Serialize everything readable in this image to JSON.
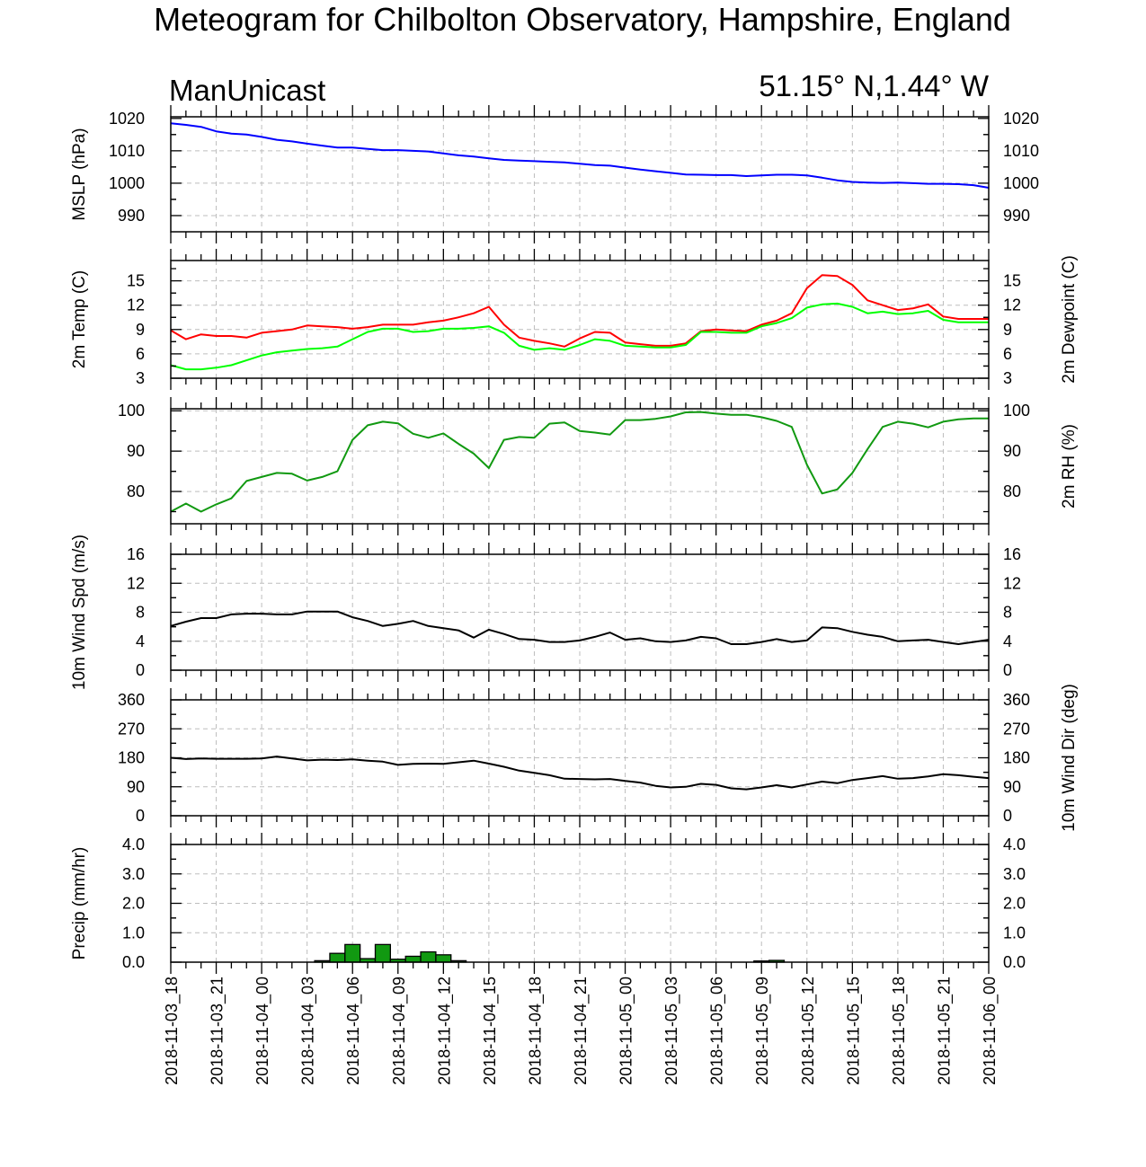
{
  "title": "Meteogram for Chilbolton Observatory, Hampshire, England",
  "model": "ManUnicast",
  "location": "51.15° N,1.44° W",
  "colors": {
    "mslp": "#0000ff",
    "temp": "#ff0000",
    "dewpoint": "#00ff00",
    "rh": "#119911",
    "wind": "#000000",
    "precip": "#119911"
  },
  "chart_data": [
    {
      "type": "line",
      "key": "mslp",
      "ylabel_left": "MSLP (hPa)",
      "ylabel_right": "",
      "ylim": [
        985,
        1020.5
      ],
      "yticks": [
        990,
        1000,
        1010,
        1020
      ],
      "tick_labels": [
        "990",
        "1000",
        "1010",
        "1020"
      ],
      "right_tick_labels": true,
      "x_hours": [
        0,
        1,
        2,
        3,
        4,
        5,
        6,
        7,
        8,
        9,
        10,
        11,
        12,
        13,
        14,
        15,
        16,
        17,
        18,
        19,
        20,
        21,
        22,
        23,
        24,
        25,
        26,
        27,
        28,
        29,
        30,
        31,
        32,
        33,
        34,
        35,
        36,
        37,
        38,
        39,
        40,
        41,
        42,
        43,
        44,
        45,
        46,
        47,
        48,
        49,
        50,
        51,
        52,
        53,
        54
      ],
      "series": [
        {
          "color_key": "mslp",
          "values": [
            1018.5,
            1018.0,
            1017.4,
            1016.0,
            1015.3,
            1015.0,
            1014.3,
            1013.4,
            1012.9,
            1012.2,
            1011.6,
            1011.0,
            1011.0,
            1010.6,
            1010.2,
            1010.2,
            1010.0,
            1009.8,
            1009.2,
            1008.6,
            1008.2,
            1007.7,
            1007.2,
            1007.0,
            1006.8,
            1006.6,
            1006.4,
            1006.0,
            1005.6,
            1005.4,
            1004.8,
            1004.2,
            1003.7,
            1003.2,
            1002.7,
            1002.6,
            1002.5,
            1002.5,
            1002.2,
            1002.4,
            1002.6,
            1002.6,
            1002.4,
            1001.7,
            1000.9,
            1000.4,
            1000.2,
            1000.1,
            1000.2,
            1000.0,
            999.8,
            999.8,
            999.7,
            999.4,
            998.6
          ]
        }
      ]
    },
    {
      "type": "line",
      "key": "temp",
      "ylabel_left": "2m Temp (C)",
      "ylabel_right": "2m Dewpoint (C)",
      "ylim": [
        3,
        17.5
      ],
      "yticks": [
        3,
        6,
        9,
        12,
        15
      ],
      "tick_labels": [
        "3",
        "6",
        "9",
        "12",
        "15"
      ],
      "right_tick_labels": true,
      "x_hours": [
        0,
        1,
        2,
        3,
        4,
        5,
        6,
        7,
        8,
        9,
        10,
        11,
        12,
        13,
        14,
        15,
        16,
        17,
        18,
        19,
        20,
        21,
        22,
        23,
        24,
        25,
        26,
        27,
        28,
        29,
        30,
        31,
        32,
        33,
        34,
        35,
        36,
        37,
        38,
        39,
        40,
        41,
        42,
        43,
        44,
        45,
        46,
        47,
        48,
        49,
        50,
        51,
        52,
        53,
        54
      ],
      "series": [
        {
          "color_key": "temp",
          "values": [
            8.9,
            7.8,
            8.4,
            8.2,
            8.2,
            8.0,
            8.6,
            8.8,
            9.0,
            9.5,
            9.4,
            9.3,
            9.1,
            9.3,
            9.6,
            9.6,
            9.6,
            9.9,
            10.1,
            10.5,
            11.0,
            11.8,
            9.6,
            8.0,
            7.6,
            7.3,
            6.9,
            7.9,
            8.7,
            8.6,
            7.4,
            7.2,
            7.0,
            7.0,
            7.3,
            8.8,
            9.0,
            8.9,
            8.8,
            9.6,
            10.1,
            11.0,
            14.1,
            15.7,
            15.6,
            14.5,
            12.6,
            12.0,
            11.4,
            11.6,
            12.1,
            10.6,
            10.3,
            10.3,
            10.3
          ]
        },
        {
          "color_key": "dewpoint",
          "values": [
            4.6,
            4.1,
            4.1,
            4.3,
            4.6,
            5.2,
            5.8,
            6.2,
            6.4,
            6.6,
            6.7,
            6.9,
            7.8,
            8.7,
            9.1,
            9.1,
            8.7,
            8.8,
            9.1,
            9.1,
            9.2,
            9.4,
            8.6,
            7.0,
            6.5,
            6.7,
            6.5,
            7.1,
            7.8,
            7.6,
            7.0,
            6.9,
            6.8,
            6.8,
            7.1,
            8.7,
            8.7,
            8.6,
            8.6,
            9.4,
            9.8,
            10.4,
            11.7,
            12.1,
            12.2,
            11.8,
            11.0,
            11.2,
            10.9,
            11.0,
            11.3,
            10.2,
            9.9,
            9.9,
            9.9
          ]
        }
      ]
    },
    {
      "type": "line",
      "key": "rh",
      "ylabel_left": "",
      "ylabel_right": "2m RH (%)",
      "ylim": [
        72,
        100.5
      ],
      "yticks": [
        80,
        90,
        100
      ],
      "tick_labels": [
        "80",
        "90",
        "100"
      ],
      "right_tick_labels": true,
      "x_hours": [
        0,
        1,
        2,
        3,
        4,
        5,
        6,
        7,
        8,
        9,
        10,
        11,
        12,
        13,
        14,
        15,
        16,
        17,
        18,
        19,
        20,
        21,
        22,
        23,
        24,
        25,
        26,
        27,
        28,
        29,
        30,
        31,
        32,
        33,
        34,
        35,
        36,
        37,
        38,
        39,
        40,
        41,
        42,
        43,
        44,
        45,
        46,
        47,
        48,
        49,
        50,
        51,
        52,
        53,
        54
      ],
      "series": [
        {
          "color_key": "rh",
          "values": [
            75.0,
            77.0,
            75.0,
            76.8,
            78.3,
            82.6,
            83.6,
            84.6,
            84.4,
            82.7,
            83.6,
            85.0,
            92.8,
            96.4,
            97.3,
            96.9,
            94.3,
            93.3,
            94.4,
            91.8,
            89.4,
            85.8,
            92.8,
            93.5,
            93.3,
            96.8,
            97.1,
            95.0,
            94.6,
            94.1,
            97.7,
            97.7,
            98.0,
            98.6,
            99.6,
            99.7,
            99.3,
            99.0,
            99.0,
            98.4,
            97.5,
            96.0,
            86.6,
            79.5,
            80.5,
            84.6,
            90.5,
            96.0,
            97.3,
            96.8,
            95.9,
            97.3,
            97.9,
            98.1,
            98.1
          ]
        }
      ]
    },
    {
      "type": "line",
      "key": "wind_speed",
      "ylabel_left": "10m Wind Spd (m/s)",
      "ylabel_right": "",
      "ylim": [
        0,
        16
      ],
      "yticks": [
        0,
        4,
        8,
        12,
        16
      ],
      "tick_labels": [
        "0",
        "4",
        "8",
        "12",
        "16"
      ],
      "right_tick_labels": true,
      "x_hours": [
        0,
        1,
        2,
        3,
        4,
        5,
        6,
        7,
        8,
        9,
        10,
        11,
        12,
        13,
        14,
        15,
        16,
        17,
        18,
        19,
        20,
        21,
        22,
        23,
        24,
        25,
        26,
        27,
        28,
        29,
        30,
        31,
        32,
        33,
        34,
        35,
        36,
        37,
        38,
        39,
        40,
        41,
        42,
        43,
        44,
        45,
        46,
        47,
        48,
        49,
        50,
        51,
        52,
        53,
        54
      ],
      "series": [
        {
          "color_key": "wind",
          "values": [
            6.1,
            6.7,
            7.2,
            7.2,
            7.7,
            7.8,
            7.8,
            7.7,
            7.7,
            8.1,
            8.1,
            8.1,
            7.3,
            6.8,
            6.1,
            6.4,
            6.8,
            6.1,
            5.8,
            5.5,
            4.5,
            5.6,
            5.0,
            4.3,
            4.2,
            3.9,
            3.9,
            4.1,
            4.6,
            5.2,
            4.2,
            4.4,
            4.0,
            3.9,
            4.1,
            4.6,
            4.4,
            3.6,
            3.6,
            3.9,
            4.3,
            3.9,
            4.1,
            5.9,
            5.8,
            5.3,
            4.9,
            4.6,
            4.0,
            4.1,
            4.2,
            3.9,
            3.6,
            3.9,
            4.2
          ]
        }
      ]
    },
    {
      "type": "line",
      "key": "wind_dir",
      "ylabel_left": "",
      "ylabel_right": "10m Wind Dir (deg)",
      "ylim": [
        0,
        360
      ],
      "yticks": [
        0,
        90,
        180,
        270,
        360
      ],
      "tick_labels": [
        "0",
        "90",
        "180",
        "270",
        "360"
      ],
      "right_tick_labels": true,
      "x_hours": [
        0,
        1,
        2,
        3,
        4,
        5,
        6,
        7,
        8,
        9,
        10,
        11,
        12,
        13,
        14,
        15,
        16,
        17,
        18,
        19,
        20,
        21,
        22,
        23,
        24,
        25,
        26,
        27,
        28,
        29,
        30,
        31,
        32,
        33,
        34,
        35,
        36,
        37,
        38,
        39,
        40,
        41,
        42,
        43,
        44,
        45,
        46,
        47,
        48,
        49,
        50,
        51,
        52,
        53,
        54
      ],
      "series": [
        {
          "color_key": "wind",
          "values": [
            180,
            176,
            178,
            177,
            177,
            177,
            178,
            184,
            178,
            172,
            174,
            173,
            175,
            171,
            168,
            158,
            161,
            162,
            161,
            166,
            171,
            162,
            152,
            140,
            133,
            126,
            115,
            114,
            113,
            114,
            108,
            103,
            93,
            88,
            90,
            99,
            96,
            85,
            82,
            88,
            95,
            88,
            97,
            106,
            101,
            111,
            117,
            123,
            115,
            117,
            122,
            129,
            126,
            121,
            117
          ]
        }
      ]
    },
    {
      "type": "bar",
      "key": "precip",
      "ylabel_left": "Precip (mm/hr)",
      "ylabel_right": "",
      "ylim": [
        0,
        4.0
      ],
      "yticks": [
        0,
        1,
        2,
        3,
        4
      ],
      "tick_labels": [
        "0.0",
        "1.0",
        "2.0",
        "3.0",
        "4.0"
      ],
      "right_tick_labels": true,
      "bars": [
        {
          "hour": 10,
          "value": 0.05
        },
        {
          "hour": 11,
          "value": 0.3
        },
        {
          "hour": 12,
          "value": 0.6
        },
        {
          "hour": 13,
          "value": 0.12
        },
        {
          "hour": 14,
          "value": 0.6
        },
        {
          "hour": 15,
          "value": 0.1
        },
        {
          "hour": 16,
          "value": 0.2
        },
        {
          "hour": 17,
          "value": 0.35
        },
        {
          "hour": 18,
          "value": 0.25
        },
        {
          "hour": 19,
          "value": 0.05
        },
        {
          "hour": 39,
          "value": 0.04
        },
        {
          "hour": 40,
          "value": 0.06
        }
      ]
    }
  ],
  "x_axis": {
    "type": "time",
    "start": "2018-11-03_18",
    "end": "2018-11-06_00",
    "major_tick_labels": [
      "2018-11-03_18",
      "2018-11-03_21",
      "2018-11-04_00",
      "2018-11-04_03",
      "2018-11-04_06",
      "2018-11-04_09",
      "2018-11-04_12",
      "2018-11-04_15",
      "2018-11-04_18",
      "2018-11-04_21",
      "2018-11-05_00",
      "2018-11-05_03",
      "2018-11-05_06",
      "2018-11-05_09",
      "2018-11-05_12",
      "2018-11-05_15",
      "2018-11-05_18",
      "2018-11-05_21",
      "2018-11-06_00"
    ]
  }
}
